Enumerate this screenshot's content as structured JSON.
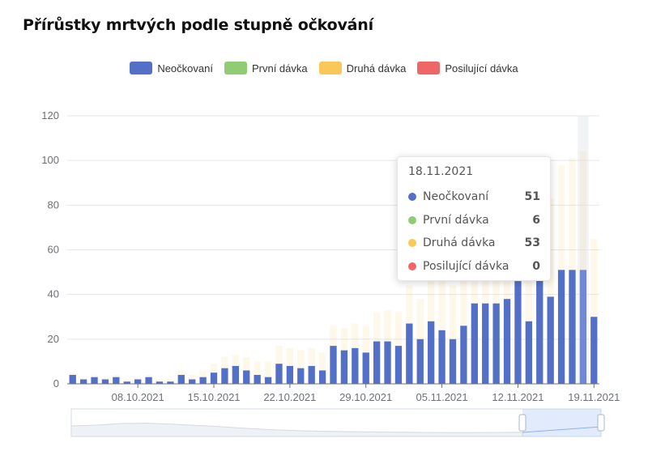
{
  "title": "Přírůstky mrtvých podle stupně očkování",
  "legend": {
    "items": [
      {
        "label": "Neočkovaní",
        "color": "#5470c6"
      },
      {
        "label": "První dávka",
        "color": "#91cc75"
      },
      {
        "label": "Druhá dávka",
        "color": "#fac858"
      },
      {
        "label": "Posilující dávka",
        "color": "#ee6666"
      }
    ]
  },
  "tooltip": {
    "date": "18.11.2021",
    "rows": [
      {
        "label": "Neočkovaní",
        "value": "51",
        "color": "#5470c6"
      },
      {
        "label": "První dávka",
        "value": "6",
        "color": "#91cc75"
      },
      {
        "label": "Druhá dávka",
        "value": "53",
        "color": "#fac858"
      },
      {
        "label": "Posilující dávka",
        "value": "0",
        "color": "#ee6666"
      }
    ]
  },
  "chart_data": {
    "type": "bar",
    "title": "Přírůstky mrtvých podle stupně očkování",
    "xlabel": "",
    "ylabel": "",
    "ylim": [
      0,
      120
    ],
    "y_ticks": [
      0,
      20,
      40,
      60,
      80,
      100,
      120
    ],
    "grid": true,
    "legend_position": "top-center",
    "x_tick_labels": [
      "08.10.2021",
      "15.10.2021",
      "22.10.2021",
      "29.10.2021",
      "05.11.2021",
      "12.11.2021",
      "19.11.2021"
    ],
    "categories": [
      "02.10.2021",
      "03.10.2021",
      "04.10.2021",
      "05.10.2021",
      "06.10.2021",
      "07.10.2021",
      "08.10.2021",
      "09.10.2021",
      "10.10.2021",
      "11.10.2021",
      "12.10.2021",
      "13.10.2021",
      "14.10.2021",
      "15.10.2021",
      "16.10.2021",
      "17.10.2021",
      "18.10.2021",
      "19.10.2021",
      "20.10.2021",
      "21.10.2021",
      "22.10.2021",
      "23.10.2021",
      "24.10.2021",
      "25.10.2021",
      "26.10.2021",
      "27.10.2021",
      "28.10.2021",
      "29.10.2021",
      "30.10.2021",
      "31.10.2021",
      "01.11.2021",
      "02.11.2021",
      "03.11.2021",
      "04.11.2021",
      "05.11.2021",
      "06.11.2021",
      "07.11.2021",
      "08.11.2021",
      "09.11.2021",
      "10.11.2021",
      "11.11.2021",
      "12.11.2021",
      "13.11.2021",
      "14.11.2021",
      "15.11.2021",
      "16.11.2021",
      "17.11.2021",
      "18.11.2021",
      "19.11.2021"
    ],
    "series": [
      {
        "name": "Neočkovaní",
        "color": "#5470c6",
        "values": [
          4,
          2,
          3,
          2,
          3,
          1,
          2,
          3,
          1,
          1,
          4,
          2,
          3,
          5,
          7,
          8,
          6,
          4,
          3,
          9,
          8,
          7,
          8,
          6,
          17,
          15,
          16,
          14,
          19,
          19,
          17,
          27,
          20,
          28,
          24,
          20,
          26,
          36,
          36,
          36,
          38,
          46,
          28,
          47,
          39,
          51,
          51,
          51,
          30
        ]
      },
      {
        "name": "První dávka",
        "color": "#91cc75",
        "values": [
          0,
          0,
          0,
          0,
          0,
          0,
          0,
          0,
          0,
          0,
          0,
          0,
          0,
          0,
          0,
          0,
          0,
          0,
          0,
          0,
          0,
          0,
          0,
          0,
          0,
          0,
          0,
          0,
          0,
          0,
          0,
          0,
          0,
          0,
          0,
          0,
          0,
          0,
          0,
          0,
          0,
          0,
          0,
          0,
          0,
          0,
          0,
          6,
          0
        ]
      },
      {
        "name": "Druhá dávka",
        "color": "#fac858",
        "values": [
          1,
          1,
          1,
          1,
          1,
          1,
          1,
          1,
          1,
          1,
          2,
          2,
          3,
          4,
          5,
          5,
          6,
          6,
          7,
          8,
          8,
          8,
          8,
          8,
          9,
          10,
          11,
          12,
          13,
          14,
          15,
          17,
          18,
          20,
          22,
          24,
          26,
          28,
          30,
          33,
          36,
          38,
          40,
          42,
          44,
          47,
          50,
          53,
          35
        ]
      },
      {
        "name": "Posilující dávka",
        "color": "#ee6666",
        "values": [
          0,
          0,
          0,
          0,
          0,
          0,
          0,
          0,
          0,
          0,
          0,
          0,
          0,
          0,
          0,
          0,
          0,
          0,
          0,
          0,
          0,
          0,
          0,
          0,
          0,
          0,
          0,
          0,
          0,
          0,
          0,
          0,
          0,
          0,
          0,
          0,
          0,
          0,
          0,
          0,
          0,
          0,
          0,
          0,
          0,
          0,
          0,
          0,
          0
        ]
      }
    ],
    "highlighted_category": "18.11.2021"
  }
}
